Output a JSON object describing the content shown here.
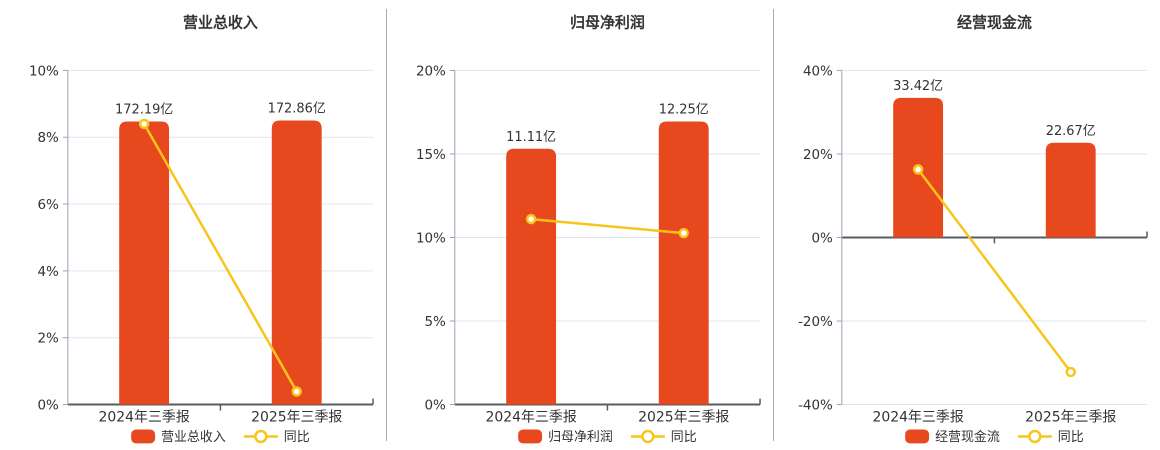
{
  "page": {
    "background": "#ffffff"
  },
  "colors": {
    "bar": "#E8481E",
    "line": "#F7C51C",
    "grid": "#DFE5F1",
    "zero_line": "#585C66",
    "axis_line": "#9CA3B0",
    "divider": "#A6AAB2",
    "text": "#333333",
    "marker_fill": "#FFFFFF"
  },
  "chart_data": [
    {
      "id": "revenue",
      "type": "bar+line",
      "title": "营业总收入",
      "categories": [
        "2024年三季报",
        "2025年三季报"
      ],
      "ylim": [
        0,
        10
      ],
      "grid": true,
      "legend_position": "bottom",
      "yticks": [
        {
          "value": 0,
          "label": "0%"
        },
        {
          "value": 2,
          "label": "2%"
        },
        {
          "value": 4,
          "label": "4%"
        },
        {
          "value": 6,
          "label": "6%"
        },
        {
          "value": 8,
          "label": "8%"
        },
        {
          "value": 10,
          "label": "10%"
        }
      ],
      "bar_series": {
        "name": "营业总收入",
        "unit": "亿",
        "values": [
          172.19,
          172.86
        ],
        "value_labels": [
          "172.19亿",
          "172.86亿"
        ],
        "bar_tops_axis_pct": [
          8.47,
          8.5
        ]
      },
      "line_series": {
        "name": "同比",
        "values_pct": [
          8.4,
          0.39
        ]
      }
    },
    {
      "id": "net-profit",
      "type": "bar+line",
      "title": "归母净利润",
      "categories": [
        "2024年三季报",
        "2025年三季报"
      ],
      "ylim": [
        0,
        20
      ],
      "grid": true,
      "legend_position": "bottom",
      "yticks": [
        {
          "value": 0,
          "label": "0%"
        },
        {
          "value": 5,
          "label": "5%"
        },
        {
          "value": 10,
          "label": "10%"
        },
        {
          "value": 15,
          "label": "15%"
        },
        {
          "value": 20,
          "label": "20%"
        }
      ],
      "bar_series": {
        "name": "归母净利润",
        "unit": "亿",
        "values": [
          11.11,
          12.25
        ],
        "value_labels": [
          "11.11亿",
          "12.25亿"
        ],
        "bar_tops_axis_pct": [
          15.31,
          16.94
        ]
      },
      "line_series": {
        "name": "同比",
        "values_pct": [
          11.1,
          10.26
        ]
      }
    },
    {
      "id": "operating-cash-flow",
      "type": "bar+line",
      "title": "经营现金流",
      "categories": [
        "2024年三季报",
        "2025年三季报"
      ],
      "ylim": [
        -40,
        40
      ],
      "grid": true,
      "legend_position": "bottom",
      "yticks": [
        {
          "value": -40,
          "label": "-40%"
        },
        {
          "value": -20,
          "label": "-20%"
        },
        {
          "value": 0,
          "label": "0%"
        },
        {
          "value": 20,
          "label": "20%"
        },
        {
          "value": 40,
          "label": "40%"
        }
      ],
      "bar_series": {
        "name": "经营现金流",
        "unit": "亿",
        "values": [
          33.42,
          22.67
        ],
        "value_labels": [
          "33.42亿",
          "22.67亿"
        ],
        "bar_tops_axis_pct": [
          33.42,
          22.67
        ]
      },
      "line_series": {
        "name": "同比",
        "values_pct": [
          16.3,
          -32.2
        ]
      }
    }
  ]
}
